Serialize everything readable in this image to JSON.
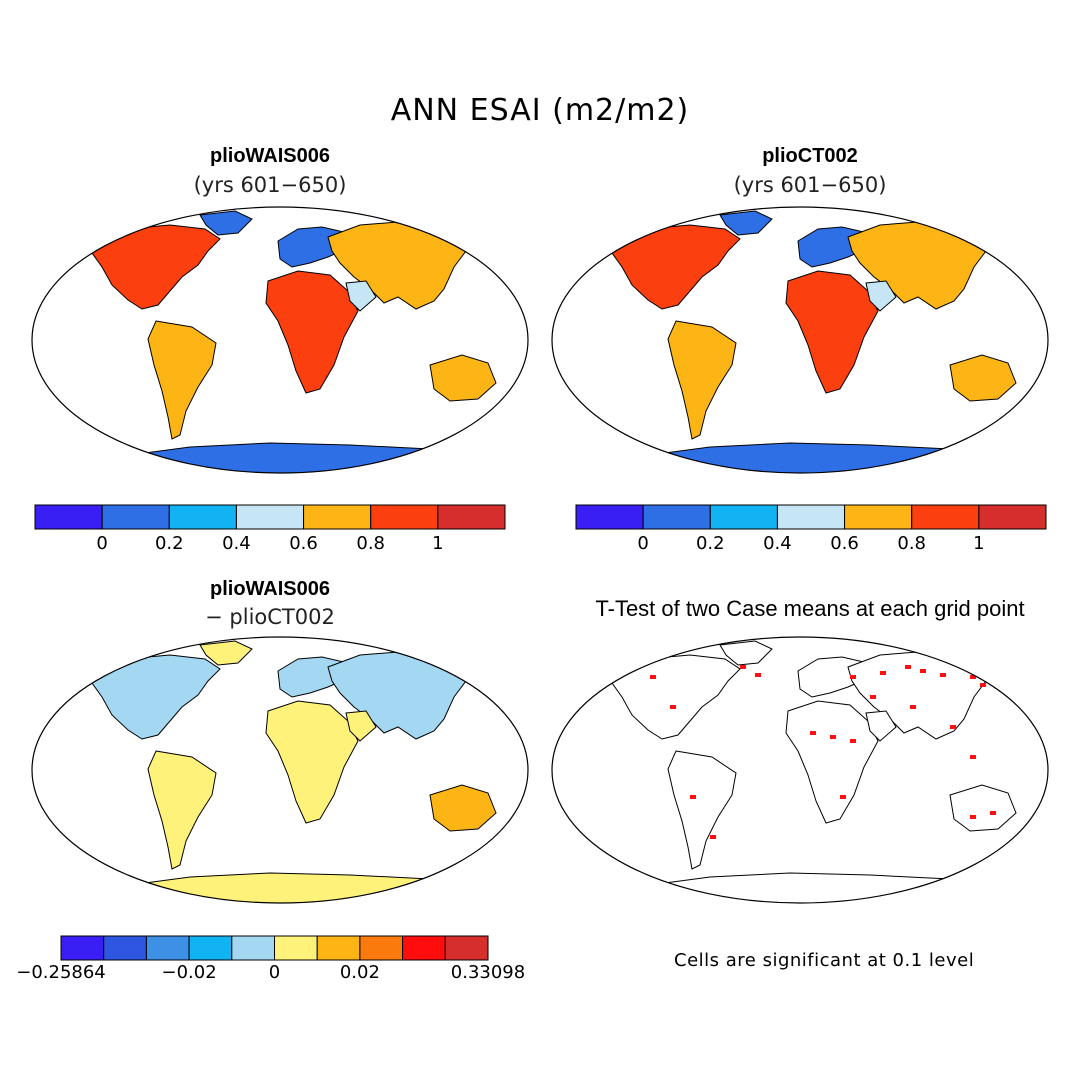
{
  "figure": {
    "title": "ANN ESAI (m2/m2)"
  },
  "panels": [
    {
      "id": "case1",
      "title": "plioWAIS006",
      "subtitle": "(yrs 601−650)"
    },
    {
      "id": "case2",
      "title": "plioCT002",
      "subtitle": "(yrs 601−650)"
    },
    {
      "id": "diff",
      "title": "plioWAIS006",
      "subtitle": "− plioCT002"
    },
    {
      "id": "ttest",
      "title": "T-Test of two Case means at each grid point",
      "subtitle": ""
    }
  ],
  "colorbars": {
    "esai": {
      "colors": [
        "#3a1ff5",
        "#2f6fe6",
        "#12b3f2",
        "#c6e6f5",
        "#fcb514",
        "#fb3f0e",
        "#d62d2d"
      ],
      "labels": [
        "0",
        "0.2",
        "0.4",
        "0.6",
        "0.8",
        "1"
      ]
    },
    "diff": {
      "colors": [
        "#3a1ff5",
        "#2f56e0",
        "#3e8fe6",
        "#12b3f2",
        "#a4d8f2",
        "#fff27a",
        "#fcb514",
        "#fb7a0e",
        "#ff0d0d",
        "#d62d2d"
      ],
      "labels": [
        "−0.25864",
        "−0.02",
        "0",
        "0.02",
        "0.33098"
      ]
    }
  },
  "ttest_note": "Cells are significant at 0.1 level"
}
